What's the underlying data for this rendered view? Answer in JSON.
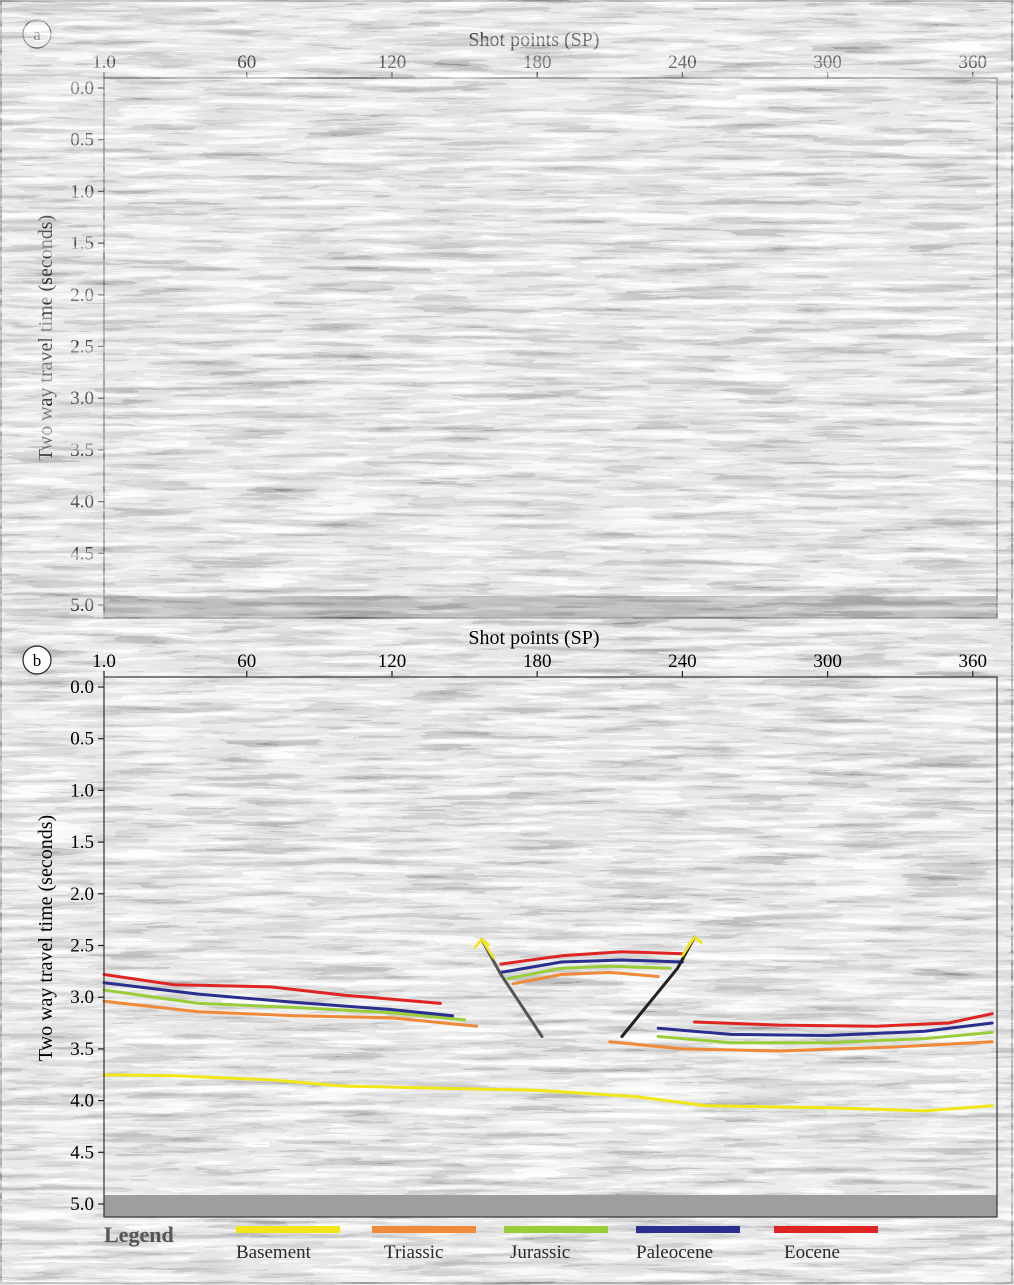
{
  "panels": [
    {
      "id": "a",
      "label": "a",
      "x_axis_title": "Shot points (SP)",
      "y_axis_title": "Two way travel time (seconds)",
      "x_ticks": [
        "1.0",
        "60",
        "120",
        "180",
        "240",
        "300",
        "360"
      ],
      "y_ticks": [
        "0.0",
        "0.5",
        "1.0",
        "1.5",
        "2.0",
        "2.5",
        "3.0",
        "3.5",
        "4.0",
        "4.5",
        "5.0"
      ]
    },
    {
      "id": "b",
      "label": "b",
      "x_axis_title": "Shot points (SP)",
      "y_axis_title": "Two way travel time (seconds)",
      "x_ticks": [
        "1.0",
        "60",
        "120",
        "180",
        "240",
        "300",
        "360"
      ],
      "y_ticks": [
        "0.0",
        "0.5",
        "1.0",
        "1.5",
        "2.0",
        "2.5",
        "3.0",
        "3.5",
        "4.0",
        "4.5",
        "5.0"
      ]
    }
  ],
  "legend": {
    "title": "Legend",
    "items": [
      {
        "label": "Basement",
        "color": "#f2e61a"
      },
      {
        "label": "Triassic",
        "color": "#ef8a3a"
      },
      {
        "label": "Jurassic",
        "color": "#9acd3a"
      },
      {
        "label": "Paleocene",
        "color": "#2a2f8f"
      },
      {
        "label": "Eocene",
        "color": "#e02424"
      }
    ]
  },
  "horizons": [
    {
      "name": "Basement",
      "color": "#f2e61a",
      "points": [
        [
          1,
          3.75
        ],
        [
          30,
          3.76
        ],
        [
          70,
          3.8
        ],
        [
          100,
          3.86
        ],
        [
          140,
          3.88
        ],
        [
          180,
          3.9
        ],
        [
          220,
          3.96
        ],
        [
          250,
          4.05
        ],
        [
          300,
          4.07
        ],
        [
          340,
          4.1
        ],
        [
          368,
          4.05
        ]
      ]
    },
    {
      "name": "Triassic",
      "color": "#ef8a3a",
      "segments": [
        [
          [
            1,
            3.04
          ],
          [
            40,
            3.14
          ],
          [
            80,
            3.18
          ],
          [
            120,
            3.2
          ],
          [
            155,
            3.28
          ]
        ],
        [
          [
            170,
            2.87
          ],
          [
            190,
            2.78
          ],
          [
            210,
            2.76
          ],
          [
            230,
            2.8
          ]
        ],
        [
          [
            210,
            3.43
          ],
          [
            240,
            3.5
          ],
          [
            280,
            3.52
          ],
          [
            330,
            3.48
          ],
          [
            368,
            3.43
          ]
        ]
      ]
    },
    {
      "name": "Jurassic",
      "color": "#9acd3a",
      "segments": [
        [
          [
            1,
            2.93
          ],
          [
            40,
            3.06
          ],
          [
            80,
            3.1
          ],
          [
            120,
            3.15
          ],
          [
            150,
            3.22
          ]
        ],
        [
          [
            168,
            2.82
          ],
          [
            190,
            2.72
          ],
          [
            210,
            2.7
          ],
          [
            235,
            2.72
          ]
        ],
        [
          [
            230,
            3.38
          ],
          [
            260,
            3.44
          ],
          [
            300,
            3.44
          ],
          [
            340,
            3.4
          ],
          [
            368,
            3.34
          ]
        ]
      ]
    },
    {
      "name": "Paleocene",
      "color": "#2a2f8f",
      "segments": [
        [
          [
            1,
            2.86
          ],
          [
            40,
            2.97
          ],
          [
            80,
            3.05
          ],
          [
            120,
            3.12
          ],
          [
            145,
            3.18
          ]
        ],
        [
          [
            165,
            2.76
          ],
          [
            190,
            2.66
          ],
          [
            215,
            2.64
          ],
          [
            240,
            2.66
          ]
        ],
        [
          [
            230,
            3.3
          ],
          [
            260,
            3.36
          ],
          [
            300,
            3.37
          ],
          [
            340,
            3.33
          ],
          [
            368,
            3.25
          ]
        ]
      ]
    },
    {
      "name": "Eocene",
      "color": "#e02424",
      "segments": [
        [
          [
            1,
            2.78
          ],
          [
            30,
            2.88
          ],
          [
            70,
            2.9
          ],
          [
            100,
            2.98
          ],
          [
            140,
            3.06
          ]
        ],
        [
          [
            165,
            2.68
          ],
          [
            190,
            2.6
          ],
          [
            215,
            2.56
          ],
          [
            240,
            2.58
          ]
        ],
        [
          [
            245,
            3.24
          ],
          [
            280,
            3.27
          ],
          [
            320,
            3.28
          ],
          [
            350,
            3.25
          ],
          [
            368,
            3.16
          ]
        ]
      ]
    }
  ],
  "faults": [
    {
      "color": "#555555",
      "points": [
        [
          157,
          2.44
        ],
        [
          165,
          2.78
        ],
        [
          182,
          3.38
        ]
      ]
    },
    {
      "color": "#222222",
      "points": [
        [
          245,
          2.42
        ],
        [
          238,
          2.72
        ],
        [
          215,
          3.38
        ]
      ]
    }
  ],
  "fault_arrows": [
    {
      "color": "#f2e61a",
      "points": [
        [
          157,
          2.44
        ],
        [
          162,
          2.62
        ]
      ]
    },
    {
      "color": "#f2e61a",
      "points": [
        [
          245,
          2.42
        ],
        [
          240,
          2.6
        ]
      ]
    }
  ]
}
